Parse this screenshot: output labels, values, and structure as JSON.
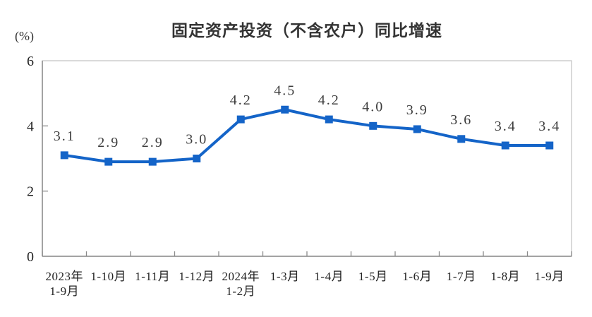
{
  "chart_data": {
    "type": "line",
    "title": "固定资产投资（不含农户）同比增速",
    "unit_label": "(%)",
    "categories": [
      "2023年\n1-9月",
      "1-10月",
      "1-11月",
      "1-12月",
      "2024年\n1-2月",
      "1-3月",
      "1-4月",
      "1-5月",
      "1-6月",
      "1-7月",
      "1-8月",
      "1-9月"
    ],
    "values": [
      3.1,
      2.9,
      2.9,
      3.0,
      4.2,
      4.5,
      4.2,
      4.0,
      3.9,
      3.6,
      3.4,
      3.4
    ],
    "data_labels": [
      "3.1",
      "2.9",
      "2.9",
      "3.0",
      "4.2",
      "4.5",
      "4.2",
      "4.0",
      "3.9",
      "3.6",
      "3.4",
      "3.4"
    ],
    "y_ticks": [
      0,
      2,
      4,
      6
    ],
    "ylim": [
      0,
      6
    ],
    "xlabel": "",
    "ylabel": "(%)",
    "grid": false,
    "legend": "none",
    "marker": "square",
    "colors": {
      "line": "#1464c8",
      "marker": "#1464c8",
      "title_text": "#333333",
      "tick_text": "#222222",
      "data_label_text": "#3c3c3c",
      "axis": "#8a8a8a",
      "plot_border": "#c6c6c6",
      "background": "#ffffff"
    }
  }
}
